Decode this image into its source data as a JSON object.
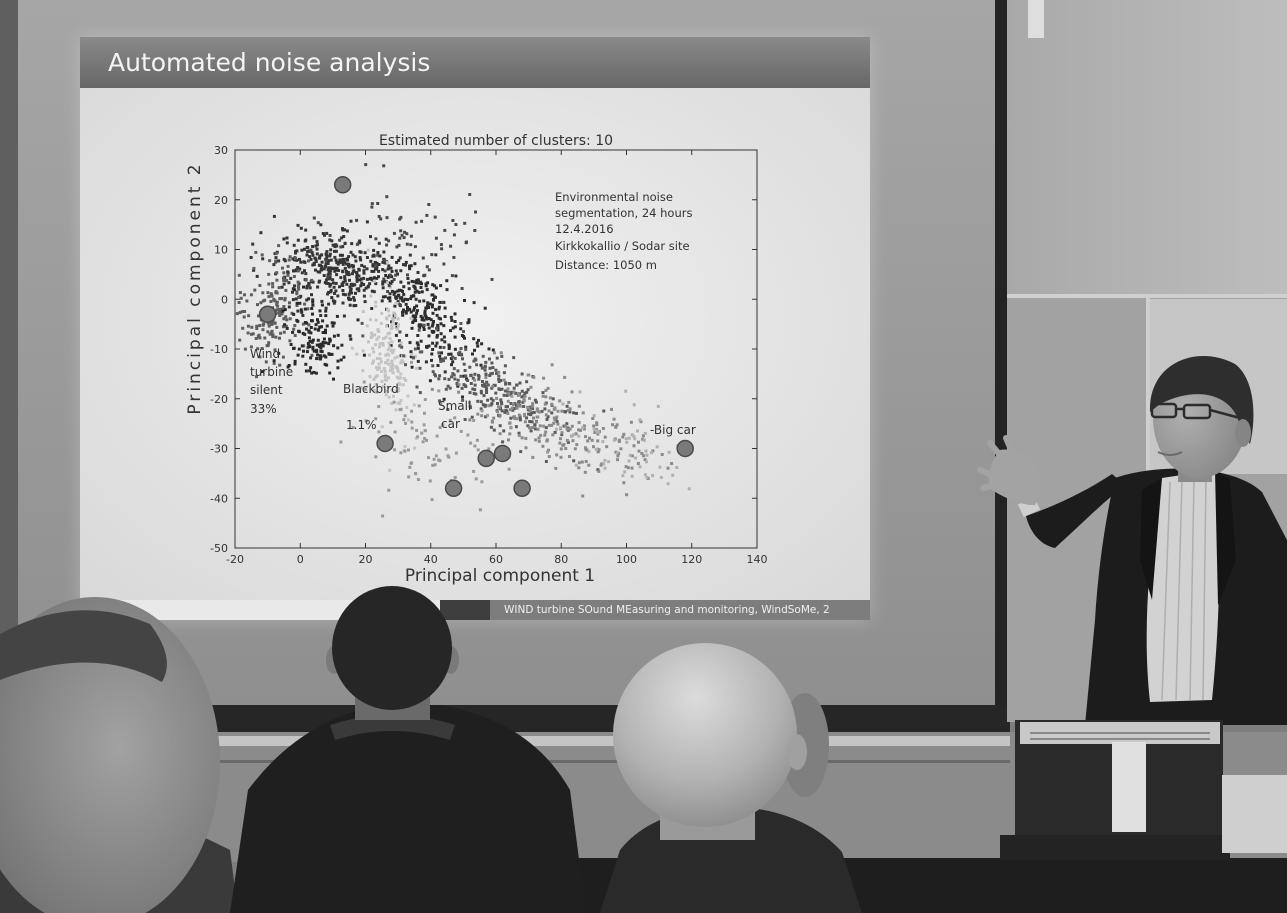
{
  "slide": {
    "title": "Automated noise analysis",
    "footer": "WIND turbine SOund MEasuring and monitoring, WindSoMe, 2"
  },
  "colors": {
    "slide_title_bar": "#777777",
    "slide_background": "#e9e9e9",
    "footer_bar": "#7d7d7d"
  },
  "chart_data": {
    "type": "scatter",
    "title": "Estimated number of clusters: 10",
    "xlabel": "Principal component 1",
    "ylabel": "Principal component 2",
    "xlim": [
      -20,
      140
    ],
    "ylim": [
      -50,
      30
    ],
    "xticks": [
      -20,
      0,
      20,
      40,
      60,
      80,
      100,
      120,
      140
    ],
    "yticks": [
      30,
      20,
      10,
      0,
      -10,
      -20,
      -30,
      -40,
      -50
    ],
    "grid": false,
    "cluster_centers": {
      "x": [
        13,
        -10,
        26,
        47,
        57,
        62,
        68,
        118
      ],
      "y": [
        23,
        -3,
        -29,
        -38,
        -32,
        -31,
        -38,
        -30
      ]
    },
    "point_clouds": [
      {
        "center": [
          12,
          6
        ],
        "spread": [
          10,
          4
        ],
        "correlation": -0.2,
        "shade": "#353535"
      },
      {
        "center": [
          -8,
          -2
        ],
        "spread": [
          6,
          5
        ],
        "correlation": 0.3,
        "shade": "#5e5e5e"
      },
      {
        "center": [
          38,
          -3
        ],
        "spread": [
          8,
          6
        ],
        "correlation": -0.6,
        "shade": "#2e2e2e"
      },
      {
        "center": [
          27,
          -12
        ],
        "spread": [
          4,
          7
        ],
        "correlation": -0.3,
        "shade": "#c3c3c3"
      },
      {
        "center": [
          58,
          -18
        ],
        "spread": [
          12,
          5
        ],
        "correlation": -0.7,
        "shade": "#5a5a5a"
      },
      {
        "center": [
          80,
          -26
        ],
        "spread": [
          14,
          5
        ],
        "correlation": -0.6,
        "shade": "#8a8a8a"
      },
      {
        "center": [
          40,
          -28
        ],
        "spread": [
          12,
          6
        ],
        "correlation": 0.0,
        "shade": "#9a9a9a"
      },
      {
        "center": [
          5,
          -8
        ],
        "spread": [
          5,
          4
        ],
        "correlation": 0.0,
        "shade": "#2a2a2a"
      },
      {
        "center": [
          30,
          12
        ],
        "spread": [
          12,
          5
        ],
        "correlation": 0.0,
        "shade": "#4a4a4a"
      },
      {
        "center": [
          100,
          -30
        ],
        "spread": [
          10,
          4
        ],
        "correlation": -0.4,
        "shade": "#b0b0b0"
      }
    ],
    "annotations": {
      "info_box": [
        "Environmental noise",
        "segmentation, 24 hours",
        "12.4.2016",
        "Kirkkokallio / Sodar site",
        "Distance: 1050 m"
      ],
      "wind_turbine": [
        "Wind",
        "turbine",
        "silent",
        "33%"
      ],
      "blackbird": [
        "Blackbird",
        "1.1%"
      ],
      "small_car": [
        "Small",
        "car"
      ],
      "big_car": "-Big car"
    }
  }
}
